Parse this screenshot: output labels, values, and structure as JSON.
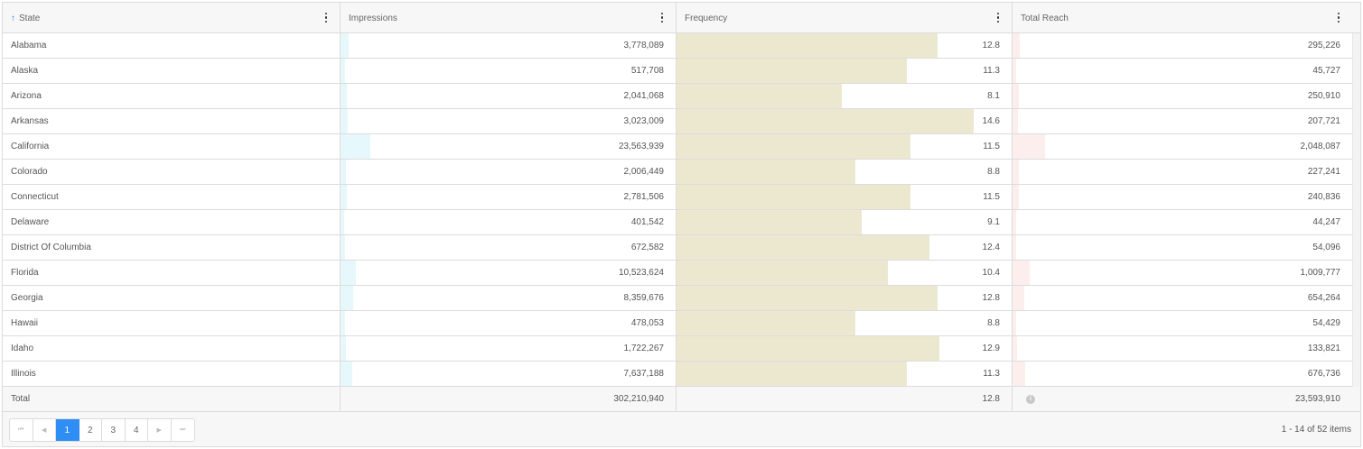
{
  "colors": {
    "accent": "#2f8ef5",
    "impressions_bar": "#e6f8fb",
    "frequency_bar": "#ece8d0",
    "reach_bar": "#fdeeee"
  },
  "columns": [
    {
      "label": "State",
      "sort_icon": "arrow-up",
      "menu_icon": "kebab-menu-icon"
    },
    {
      "label": "Impressions",
      "menu_icon": "kebab-menu-icon"
    },
    {
      "label": "Frequency",
      "menu_icon": "kebab-menu-icon"
    },
    {
      "label": "Total Reach",
      "menu_icon": "kebab-menu-icon"
    }
  ],
  "sort_arrow": "↑",
  "rows": [
    {
      "state": "Alabama",
      "impressions": "3,778,089",
      "frequency": "12.8",
      "reach": "295,226",
      "imp_pct": 1.25,
      "freq_pct": 77.8,
      "reach_pct": 1.25
    },
    {
      "state": "Alaska",
      "impressions": "517,708",
      "frequency": "11.3",
      "reach": "45,727",
      "imp_pct": 0.17,
      "freq_pct": 68.7,
      "reach_pct": 0.19
    },
    {
      "state": "Arizona",
      "impressions": "2,041,068",
      "frequency": "8.1",
      "reach": "250,910",
      "imp_pct": 0.68,
      "freq_pct": 49.2,
      "reach_pct": 1.06
    },
    {
      "state": "Arkansas",
      "impressions": "3,023,009",
      "frequency": "14.6",
      "reach": "207,721",
      "imp_pct": 1.0,
      "freq_pct": 88.8,
      "reach_pct": 0.88
    },
    {
      "state": "California",
      "impressions": "23,563,939",
      "frequency": "11.5",
      "reach": "2,048,087",
      "imp_pct": 7.8,
      "freq_pct": 69.9,
      "reach_pct": 8.68
    },
    {
      "state": "Colorado",
      "impressions": "2,006,449",
      "frequency": "8.8",
      "reach": "227,241",
      "imp_pct": 0.66,
      "freq_pct": 53.5,
      "reach_pct": 0.96
    },
    {
      "state": "Connecticut",
      "impressions": "2,781,506",
      "frequency": "11.5",
      "reach": "240,836",
      "imp_pct": 0.92,
      "freq_pct": 69.9,
      "reach_pct": 1.02
    },
    {
      "state": "Delaware",
      "impressions": "401,542",
      "frequency": "9.1",
      "reach": "44,247",
      "imp_pct": 0.13,
      "freq_pct": 55.3,
      "reach_pct": 0.19
    },
    {
      "state": "District Of Columbia",
      "impressions": "672,582",
      "frequency": "12.4",
      "reach": "54,096",
      "imp_pct": 0.22,
      "freq_pct": 75.4,
      "reach_pct": 0.23
    },
    {
      "state": "Florida",
      "impressions": "10,523,624",
      "frequency": "10.4",
      "reach": "1,009,777",
      "imp_pct": 3.48,
      "freq_pct": 63.2,
      "reach_pct": 4.28
    },
    {
      "state": "Georgia",
      "impressions": "8,359,676",
      "frequency": "12.8",
      "reach": "654,264",
      "imp_pct": 2.77,
      "freq_pct": 77.8,
      "reach_pct": 2.77
    },
    {
      "state": "Hawaii",
      "impressions": "478,053",
      "frequency": "8.8",
      "reach": "54,429",
      "imp_pct": 0.16,
      "freq_pct": 53.5,
      "reach_pct": 0.23
    },
    {
      "state": "Idaho",
      "impressions": "1,722,267",
      "frequency": "12.9",
      "reach": "133,821",
      "imp_pct": 0.57,
      "freq_pct": 78.4,
      "reach_pct": 0.57
    },
    {
      "state": "Illinois",
      "impressions": "7,637,188",
      "frequency": "11.3",
      "reach": "676,736",
      "imp_pct": 2.53,
      "freq_pct": 68.7,
      "reach_pct": 2.87
    }
  ],
  "totals": {
    "label": "Total",
    "impressions": "302,210,940",
    "frequency": "12.8",
    "reach": "23,593,910",
    "info_icon": "i"
  },
  "pagination": {
    "first_icon": "⏮",
    "prev_icon": "◀",
    "pages": [
      "1",
      "2",
      "3",
      "4"
    ],
    "active_page": "1",
    "next_icon": "▶",
    "last_icon": "⏭",
    "summary": "1 - 14 of 52 items"
  }
}
